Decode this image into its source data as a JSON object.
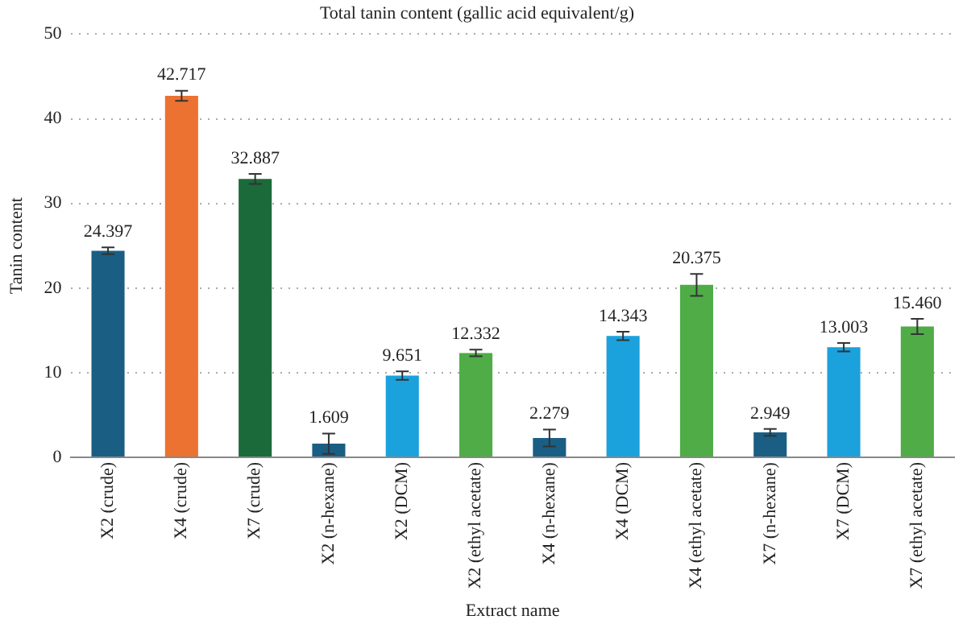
{
  "chart_data": {
    "type": "bar",
    "title": "Total tanin content (gallic acid equivalent/g)",
    "xlabel": "Extract name",
    "ylabel": "Tanin content",
    "categories": [
      "X2 (crude)",
      "X4 (crude)",
      "X7 (crude)",
      "X2 (n-hexane)",
      "X2 (DCM)",
      "X2 (ethyl acetate)",
      "X4 (n-hexane)",
      "X4 (DCM)",
      "X4 (ethyl acetate)",
      "X7 (n-hexane)",
      "X7 (DCM)",
      "X7 (ethyl acetate)"
    ],
    "values": [
      24.397,
      42.717,
      32.887,
      1.609,
      9.651,
      12.332,
      2.279,
      14.343,
      20.375,
      2.949,
      13.003,
      15.46
    ],
    "value_labels": [
      "24.397",
      "42.717",
      "32.887",
      "1.609",
      "9.651",
      "12.332",
      "2.279",
      "14.343",
      "20.375",
      "2.949",
      "13.003",
      "15.460"
    ],
    "errors": [
      0.4,
      0.6,
      0.6,
      1.2,
      0.5,
      0.4,
      1.0,
      0.5,
      1.3,
      0.4,
      0.5,
      0.9
    ],
    "colors": [
      "#1a5e84",
      "#ec7231",
      "#1b6b3a",
      "#1a5e84",
      "#1ba1dc",
      "#4fac47",
      "#1a5e84",
      "#1ba1dc",
      "#4fac47",
      "#1a5e84",
      "#1ba1dc",
      "#4fac47"
    ],
    "ylim": [
      0,
      50
    ],
    "yticks": [
      0,
      10,
      20,
      30,
      40,
      50
    ],
    "grid": "y",
    "legend": false
  }
}
